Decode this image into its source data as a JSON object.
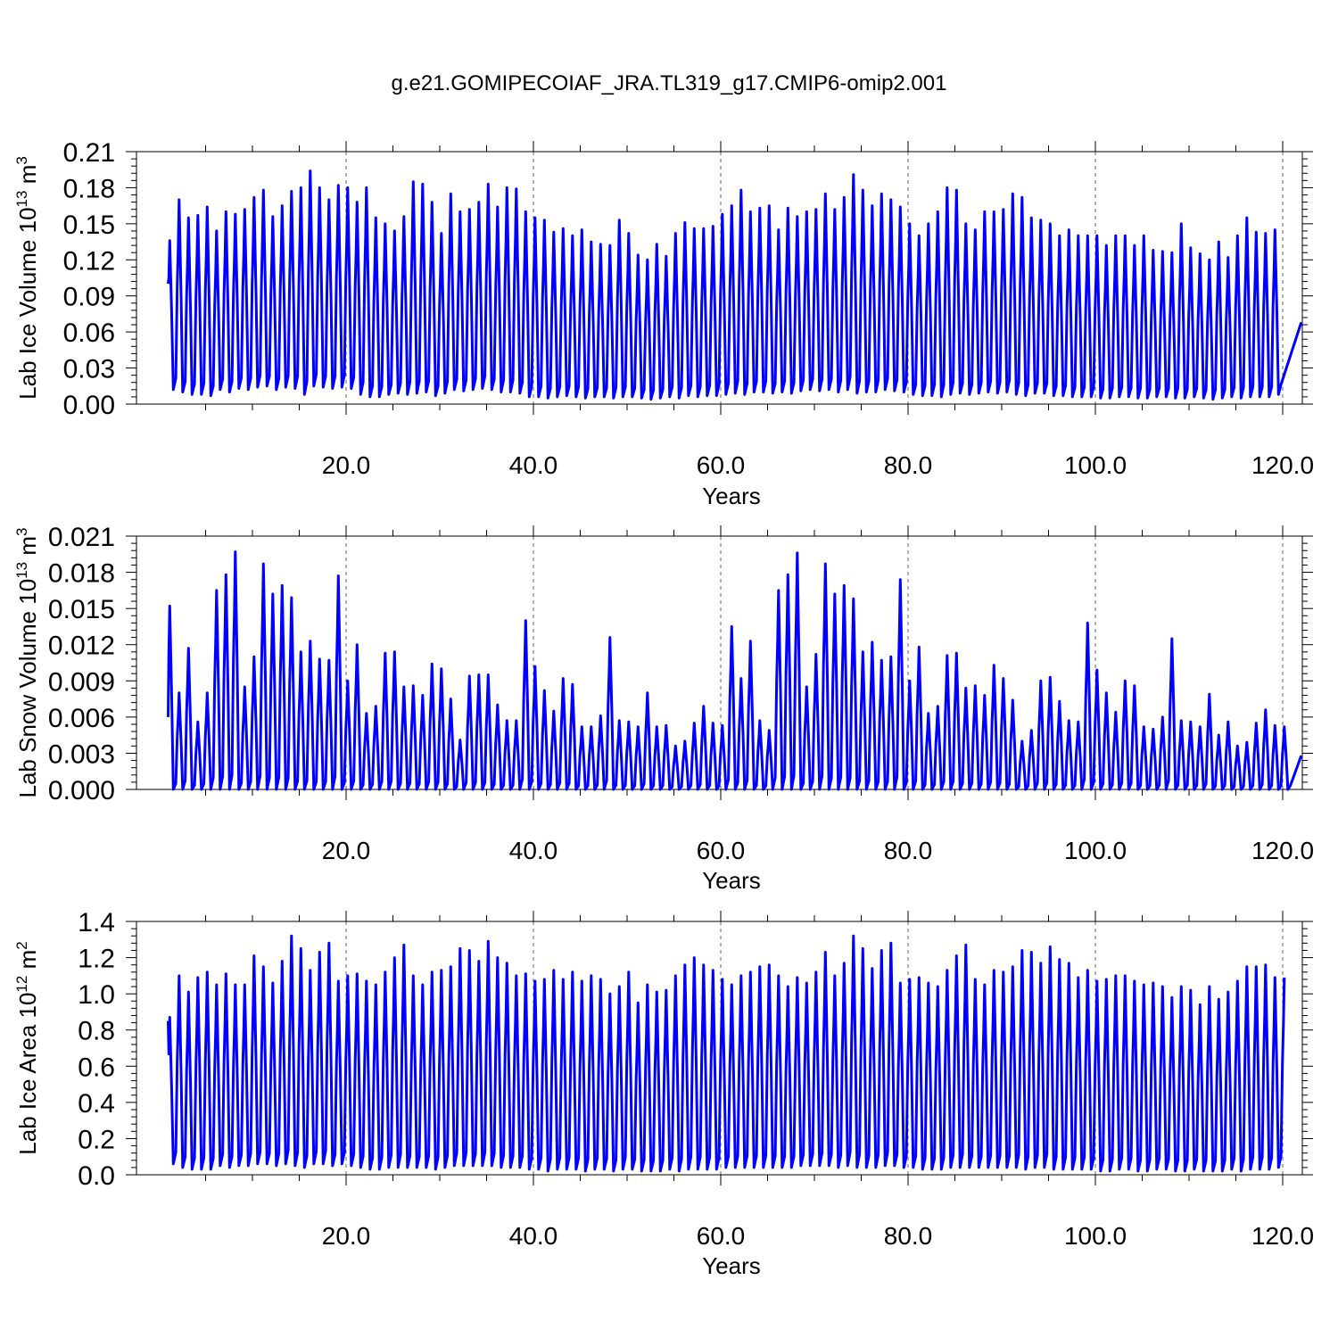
{
  "title": "g.e21.GOMIPECOIAF_JRA.TL319_g17.CMIP6-omip2.001",
  "chart_data": [
    {
      "type": "line",
      "xlabel": "Years",
      "ylabel_text": "Lab Ice Volume 10",
      "ylabel_exp": "13",
      "ylabel_unit": " m",
      "ylabel_unit_exp": "3",
      "xlim": [
        1,
        122
      ],
      "ylim": [
        0,
        0.21
      ],
      "yticks": [
        "0.00",
        "0.03",
        "0.06",
        "0.09",
        "0.12",
        "0.15",
        "0.18",
        "0.21"
      ],
      "xticks": [
        "20.0",
        "40.0",
        "60.0",
        "80.0",
        "100.0",
        "120.0"
      ],
      "grid_x": "dashed vertical at major x ticks",
      "series": [
        {
          "color": "#0000ff",
          "start_value": 0.1,
          "end_value": 0.068,
          "annual_max": [
            0.136,
            0.17,
            0.155,
            0.157,
            0.164,
            0.144,
            0.16,
            0.158,
            0.162,
            0.172,
            0.178,
            0.156,
            0.165,
            0.177,
            0.18,
            0.194,
            0.18,
            0.17,
            0.182,
            0.18,
            0.168,
            0.18,
            0.155,
            0.15,
            0.144,
            0.156,
            0.185,
            0.183,
            0.168,
            0.142,
            0.175,
            0.16,
            0.162,
            0.168,
            0.183,
            0.164,
            0.18,
            0.179,
            0.16,
            0.155,
            0.153,
            0.143,
            0.146,
            0.14,
            0.145,
            0.135,
            0.133,
            0.132,
            0.153,
            0.142,
            0.124,
            0.12,
            0.133,
            0.123,
            0.142,
            0.151,
            0.146,
            0.146,
            0.148,
            0.158,
            0.165,
            0.178,
            0.16,
            0.163,
            0.165,
            0.145,
            0.163,
            0.156,
            0.16,
            0.162,
            0.175,
            0.162,
            0.172,
            0.191,
            0.178,
            0.165,
            0.175,
            0.17,
            0.164,
            0.15,
            0.14,
            0.15,
            0.16,
            0.18,
            0.178,
            0.15,
            0.145,
            0.16,
            0.16,
            0.162,
            0.175,
            0.172,
            0.155,
            0.153,
            0.15,
            0.14,
            0.145,
            0.14,
            0.14,
            0.14,
            0.132,
            0.14,
            0.14,
            0.132,
            0.14,
            0.128,
            0.127,
            0.126,
            0.15,
            0.13,
            0.125,
            0.12,
            0.135,
            0.122,
            0.14,
            0.155,
            0.143,
            0.142,
            0.145
          ],
          "annual_min": [
            0.012,
            0.01,
            0.008,
            0.008,
            0.007,
            0.012,
            0.01,
            0.013,
            0.012,
            0.014,
            0.015,
            0.012,
            0.014,
            0.013,
            0.008,
            0.015,
            0.014,
            0.013,
            0.014,
            0.013,
            0.008,
            0.006,
            0.006,
            0.008,
            0.009,
            0.008,
            0.009,
            0.01,
            0.007,
            0.009,
            0.012,
            0.011,
            0.012,
            0.013,
            0.012,
            0.01,
            0.01,
            0.009,
            0.006,
            0.006,
            0.005,
            0.006,
            0.007,
            0.006,
            0.005,
            0.006,
            0.006,
            0.005,
            0.006,
            0.006,
            0.005,
            0.004,
            0.005,
            0.006,
            0.005,
            0.007,
            0.006,
            0.007,
            0.007,
            0.008,
            0.009,
            0.008,
            0.01,
            0.01,
            0.009,
            0.01,
            0.009,
            0.011,
            0.012,
            0.011,
            0.012,
            0.01,
            0.012,
            0.009,
            0.01,
            0.01,
            0.012,
            0.011,
            0.01,
            0.008,
            0.007,
            0.007,
            0.006,
            0.008,
            0.009,
            0.008,
            0.009,
            0.01,
            0.009,
            0.01,
            0.008,
            0.007,
            0.009,
            0.009,
            0.007,
            0.007,
            0.006,
            0.006,
            0.006,
            0.005,
            0.005,
            0.006,
            0.006,
            0.005,
            0.005,
            0.006,
            0.006,
            0.005,
            0.005,
            0.006,
            0.005,
            0.004,
            0.005,
            0.006,
            0.005,
            0.006,
            0.006,
            0.006,
            0.008
          ]
        }
      ]
    },
    {
      "type": "line",
      "xlabel": "Years",
      "ylabel_text": "Lab Snow Volume 10",
      "ylabel_exp": "13",
      "ylabel_unit": " m",
      "ylabel_unit_exp": "3",
      "xlim": [
        1,
        122
      ],
      "ylim": [
        0,
        0.021
      ],
      "yticks": [
        "0.000",
        "0.003",
        "0.006",
        "0.009",
        "0.012",
        "0.015",
        "0.018",
        "0.021"
      ],
      "xticks": [
        "20.0",
        "40.0",
        "60.0",
        "80.0",
        "100.0",
        "120.0"
      ],
      "grid_x": "dashed vertical at major x ticks",
      "series": [
        {
          "color": "#0000ff",
          "start_value": 0.006,
          "end_value": 0.0028,
          "annual_max": [
            0.0152,
            0.008,
            0.0117,
            0.0056,
            0.008,
            0.0165,
            0.0178,
            0.0197,
            0.0085,
            0.011,
            0.0187,
            0.0162,
            0.0169,
            0.0159,
            0.0114,
            0.0123,
            0.0108,
            0.0107,
            0.0177,
            0.009,
            0.012,
            0.0063,
            0.0069,
            0.0113,
            0.0114,
            0.0085,
            0.0086,
            0.0078,
            0.0104,
            0.01,
            0.0075,
            0.0041,
            0.0094,
            0.0095,
            0.0095,
            0.007,
            0.0057,
            0.0057,
            0.014,
            0.0102,
            0.0082,
            0.0065,
            0.0092,
            0.0087,
            0.0052,
            0.0052,
            0.0061,
            0.0126,
            0.0057,
            0.0056,
            0.0052,
            0.008,
            0.0052,
            0.0053,
            0.0036,
            0.004,
            0.0055,
            0.0069,
            0.0055,
            0.0053,
            0.0135,
            0.0092,
            0.0123,
            0.0057,
            0.0049,
            0.0165,
            0.0178,
            0.0196,
            0.0085,
            0.0112,
            0.0187,
            0.0162,
            0.0169,
            0.0158,
            0.0114,
            0.0122,
            0.0107,
            0.011,
            0.0174,
            0.009,
            0.0118,
            0.0063,
            0.0069,
            0.0111,
            0.0113,
            0.0084,
            0.0086,
            0.0078,
            0.0103,
            0.0092,
            0.0074,
            0.004,
            0.0049,
            0.009,
            0.0093,
            0.0073,
            0.0057,
            0.0056,
            0.0138,
            0.0099,
            0.008,
            0.0064,
            0.009,
            0.0086,
            0.0052,
            0.005,
            0.006,
            0.0125,
            0.0057,
            0.0056,
            0.0052,
            0.0079,
            0.0045,
            0.0056,
            0.0036,
            0.0039,
            0.0055,
            0.0066,
            0.0053,
            0.0052
          ],
          "annual_min": [
            0.0,
            0.0,
            0.0,
            0.0,
            0.0,
            0.0,
            0.0,
            0.0,
            0.0,
            0.0,
            0.0,
            0.0,
            0.0,
            0.0,
            0.0,
            0.0,
            0.0,
            0.0,
            0.0,
            0.0,
            0.0,
            0.0,
            0.0,
            0.0,
            0.0,
            0.0,
            0.0,
            0.0,
            0.0,
            0.0,
            0.0,
            0.0,
            0.0,
            0.0,
            0.0,
            0.0,
            0.0,
            0.0,
            0.0,
            0.0,
            0.0,
            0.0,
            0.0,
            0.0,
            0.0,
            0.0,
            0.0,
            0.0,
            0.0,
            0.0,
            0.0,
            0.0,
            0.0,
            0.0,
            0.0,
            0.0,
            0.0,
            0.0,
            0.0,
            0.0,
            0.0,
            0.0,
            0.0,
            0.0,
            0.0,
            0.0,
            0.0,
            0.0,
            0.0,
            0.0,
            0.0,
            0.0,
            0.0,
            0.0,
            0.0,
            0.0,
            0.0,
            0.0,
            0.0,
            0.0,
            0.0,
            0.0,
            0.0,
            0.0,
            0.0,
            0.0,
            0.0,
            0.0,
            0.0,
            0.0,
            0.0,
            0.0,
            0.0,
            0.0,
            0.0,
            0.0,
            0.0,
            0.0,
            0.0,
            0.0,
            0.0,
            0.0,
            0.0,
            0.0,
            0.0,
            0.0,
            0.0,
            0.0,
            0.0,
            0.0,
            0.0,
            0.0,
            0.0,
            0.0,
            0.0,
            0.0,
            0.0,
            0.0,
            0.0,
            0.0
          ]
        }
      ]
    },
    {
      "type": "line",
      "xlabel": "Years",
      "ylabel_text": "Lab Ice Area 10",
      "ylabel_exp": "12",
      "ylabel_unit": " m",
      "ylabel_unit_exp": "2",
      "xlim": [
        1,
        122
      ],
      "ylim": [
        0,
        1.4
      ],
      "yticks": [
        "0.0",
        "0.2",
        "0.4",
        "0.6",
        "0.8",
        "1.0",
        "1.2",
        "1.4"
      ],
      "xticks": [
        "20.0",
        "40.0",
        "60.0",
        "80.0",
        "100.0",
        "120.0"
      ],
      "grid_x": "dashed vertical at major x ticks",
      "series": [
        {
          "color": "#0000ff",
          "start_value": 0.85,
          "end_value": 0.78,
          "annual_max": [
            0.87,
            1.1,
            1.01,
            1.09,
            1.12,
            1.05,
            1.11,
            1.05,
            1.05,
            1.21,
            1.15,
            1.06,
            1.18,
            1.32,
            1.25,
            1.13,
            1.23,
            1.28,
            1.07,
            1.1,
            1.11,
            1.07,
            1.05,
            1.12,
            1.2,
            1.27,
            1.1,
            1.05,
            1.12,
            1.13,
            1.15,
            1.25,
            1.24,
            1.18,
            1.29,
            1.2,
            1.17,
            1.1,
            1.11,
            1.07,
            1.08,
            1.13,
            1.08,
            1.12,
            1.07,
            1.1,
            1.08,
            1.0,
            1.04,
            1.12,
            0.95,
            1.05,
            1.01,
            1.02,
            1.1,
            1.16,
            1.2,
            1.16,
            1.13,
            1.08,
            1.05,
            1.1,
            1.12,
            1.15,
            1.16,
            1.1,
            1.04,
            1.09,
            1.06,
            1.12,
            1.23,
            1.1,
            1.17,
            1.32,
            1.25,
            1.14,
            1.24,
            1.28,
            1.06,
            1.08,
            1.09,
            1.06,
            1.04,
            1.13,
            1.21,
            1.27,
            1.08,
            1.05,
            1.13,
            1.12,
            1.15,
            1.24,
            1.23,
            1.17,
            1.26,
            1.19,
            1.17,
            1.09,
            1.13,
            1.07,
            1.08,
            1.1,
            1.1,
            1.07,
            1.05,
            1.06,
            1.04,
            0.98,
            1.04,
            1.02,
            0.94,
            1.04,
            0.97,
            1.01,
            1.07,
            1.15,
            1.15,
            1.16,
            1.09,
            1.09
          ],
          "annual_min": [
            0.06,
            0.04,
            0.03,
            0.03,
            0.03,
            0.05,
            0.04,
            0.05,
            0.05,
            0.06,
            0.06,
            0.05,
            0.06,
            0.05,
            0.04,
            0.06,
            0.06,
            0.05,
            0.06,
            0.05,
            0.04,
            0.03,
            0.03,
            0.04,
            0.04,
            0.04,
            0.04,
            0.04,
            0.03,
            0.04,
            0.05,
            0.05,
            0.05,
            0.05,
            0.05,
            0.04,
            0.04,
            0.04,
            0.03,
            0.03,
            0.02,
            0.03,
            0.03,
            0.03,
            0.02,
            0.03,
            0.03,
            0.02,
            0.03,
            0.03,
            0.02,
            0.02,
            0.02,
            0.03,
            0.02,
            0.03,
            0.03,
            0.03,
            0.03,
            0.04,
            0.04,
            0.04,
            0.04,
            0.04,
            0.04,
            0.04,
            0.04,
            0.05,
            0.05,
            0.05,
            0.05,
            0.04,
            0.05,
            0.04,
            0.04,
            0.04,
            0.05,
            0.05,
            0.04,
            0.04,
            0.03,
            0.03,
            0.03,
            0.04,
            0.04,
            0.04,
            0.04,
            0.04,
            0.04,
            0.04,
            0.04,
            0.03,
            0.04,
            0.04,
            0.03,
            0.03,
            0.03,
            0.03,
            0.03,
            0.02,
            0.02,
            0.03,
            0.03,
            0.02,
            0.02,
            0.03,
            0.03,
            0.02,
            0.02,
            0.03,
            0.02,
            0.02,
            0.02,
            0.03,
            0.02,
            0.03,
            0.03,
            0.03,
            0.04
          ]
        }
      ]
    }
  ]
}
